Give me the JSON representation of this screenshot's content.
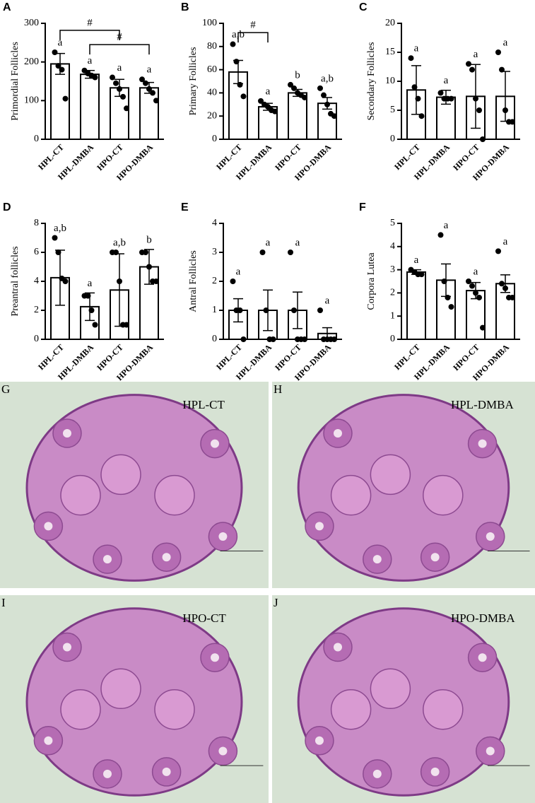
{
  "chart_data": [
    {
      "type": "bar",
      "panel": "A",
      "ylabel": "Primordial Follicles",
      "categories": [
        "HPL-CT",
        "HPL-DMBA",
        "HPO-CT",
        "HPO-DMBA"
      ],
      "values": [
        195,
        168,
        133,
        133
      ],
      "errors": [
        27,
        10,
        22,
        14
      ],
      "points": [
        [
          225,
          190,
          180,
          105
        ],
        [
          178,
          170,
          165,
          160
        ],
        [
          160,
          145,
          130,
          110,
          80
        ],
        [
          155,
          145,
          130,
          120,
          100
        ]
      ],
      "letters": [
        "a",
        "a",
        "a",
        "a"
      ],
      "ylim": [
        0,
        300
      ],
      "yticks": [
        0,
        100,
        200,
        300
      ],
      "color": "#ffffff",
      "edge_color": "#000000",
      "brackets": [
        {
          "label": "#",
          "between": [
            "HPL-CT",
            "HPO-CT"
          ],
          "y": 282
        },
        {
          "label": "#",
          "between": [
            "HPL-DMBA",
            "HPO-DMBA"
          ],
          "y": 245
        }
      ]
    },
    {
      "type": "bar",
      "panel": "B",
      "ylabel": "Primary Follicles",
      "categories": [
        "HPL-CT",
        "HPL-DMBA",
        "HPO-CT",
        "HPO-DMBA"
      ],
      "values": [
        58,
        28,
        40,
        31
      ],
      "errors": [
        10,
        3,
        3,
        5
      ],
      "points": [
        [
          82,
          67,
          47,
          37
        ],
        [
          33,
          30,
          28,
          25,
          24
        ],
        [
          47,
          44,
          40,
          38,
          36
        ],
        [
          44,
          38,
          30,
          22,
          20
        ]
      ],
      "letters": [
        "a,b",
        "a",
        "b",
        "a,b"
      ],
      "ylim": [
        0,
        100
      ],
      "yticks": [
        0,
        20,
        40,
        60,
        80,
        100
      ],
      "color": "#ffffff",
      "edge_color": "#000000",
      "brackets": [
        {
          "label": "#",
          "between": [
            "HPL-CT",
            "HPL-DMBA"
          ],
          "y": 92
        }
      ]
    },
    {
      "type": "bar",
      "panel": "C",
      "ylabel": "Secondary Follicles",
      "categories": [
        "HPL-CT",
        "HPL-DMBA",
        "HPO-CT",
        "HPO-DMBA"
      ],
      "values": [
        8.5,
        7.25,
        7.4,
        7.4
      ],
      "errors": [
        4.2,
        1.2,
        5.5,
        4.3
      ],
      "points": [
        [
          14,
          9,
          7,
          4
        ],
        [
          8,
          7,
          7,
          7
        ],
        [
          13,
          12,
          7,
          5,
          0
        ],
        [
          15,
          12,
          5,
          3,
          3
        ]
      ],
      "letters": [
        "a",
        "a",
        "a",
        "a"
      ],
      "ylim": [
        0,
        20
      ],
      "yticks": [
        0,
        5,
        10,
        15,
        20
      ],
      "color": "#ffffff",
      "edge_color": "#000000",
      "brackets": []
    },
    {
      "type": "bar",
      "panel": "D",
      "ylabel": "Preantral follicles",
      "categories": [
        "HPL-CT",
        "HPL-DMBA",
        "HPO-CT",
        "HPO-DMBA"
      ],
      "values": [
        4.25,
        2.25,
        3.4,
        5
      ],
      "errors": [
        1.9,
        0.95,
        2.5,
        1.2
      ],
      "points": [
        [
          7,
          6,
          4.2,
          4
        ],
        [
          3,
          3,
          2,
          1
        ],
        [
          6,
          6,
          4,
          1,
          1
        ],
        [
          6,
          6,
          5,
          4,
          4
        ]
      ],
      "letters": [
        "a,b",
        "a",
        "a,b",
        "b"
      ],
      "ylim": [
        0,
        8
      ],
      "yticks": [
        0,
        2,
        4,
        6,
        8
      ],
      "color": "#ffffff",
      "edge_color": "#000000",
      "brackets": []
    },
    {
      "type": "bar",
      "panel": "E",
      "ylabel": "Antral Follicles",
      "categories": [
        "HPL-CT",
        "HPL-DMBA",
        "HPO-CT",
        "HPO-DMBA"
      ],
      "values": [
        1,
        1,
        1,
        0.2
      ],
      "errors": [
        0.4,
        0.7,
        0.63,
        0.2
      ],
      "points": [
        [
          2,
          1,
          1,
          0
        ],
        [
          3,
          1,
          0,
          0
        ],
        [
          3,
          1,
          0,
          0,
          0
        ],
        [
          1,
          0,
          0,
          0,
          0
        ]
      ],
      "letters": [
        "a",
        "a",
        "a",
        "a"
      ],
      "ylim": [
        0,
        4
      ],
      "yticks": [
        0,
        1,
        2,
        3,
        4
      ],
      "color": "#ffffff",
      "edge_color": "#000000",
      "brackets": []
    },
    {
      "type": "bar",
      "panel": "F",
      "ylabel": "Corpora Lutea",
      "categories": [
        "HPL-CT",
        "HPL-DMBA",
        "HPO-CT",
        "HPO-DMBA"
      ],
      "values": [
        2.9,
        2.55,
        2.1,
        2.4
      ],
      "errors": [
        0.1,
        0.7,
        0.35,
        0.38
      ],
      "points": [
        [
          3,
          2.9,
          2.8,
          2.8
        ],
        [
          4.5,
          2.5,
          1.8,
          1.4
        ],
        [
          2.5,
          2.3,
          2,
          1.8,
          0.5
        ],
        [
          3.8,
          2.4,
          2.2,
          1.8,
          1.8
        ]
      ],
      "letters": [
        "a",
        "a",
        "a",
        "a"
      ],
      "ylim": [
        0,
        5
      ],
      "yticks": [
        0,
        1,
        2,
        3,
        4,
        5
      ],
      "color": "#ffffff",
      "edge_color": "#000000",
      "brackets": []
    }
  ],
  "images": [
    {
      "panel": "G",
      "label": "HPL-CT"
    },
    {
      "panel": "H",
      "label": "HPL-DMBA"
    },
    {
      "panel": "I",
      "label": "HPO-CT"
    },
    {
      "panel": "J",
      "label": "HPO-DMBA"
    }
  ]
}
